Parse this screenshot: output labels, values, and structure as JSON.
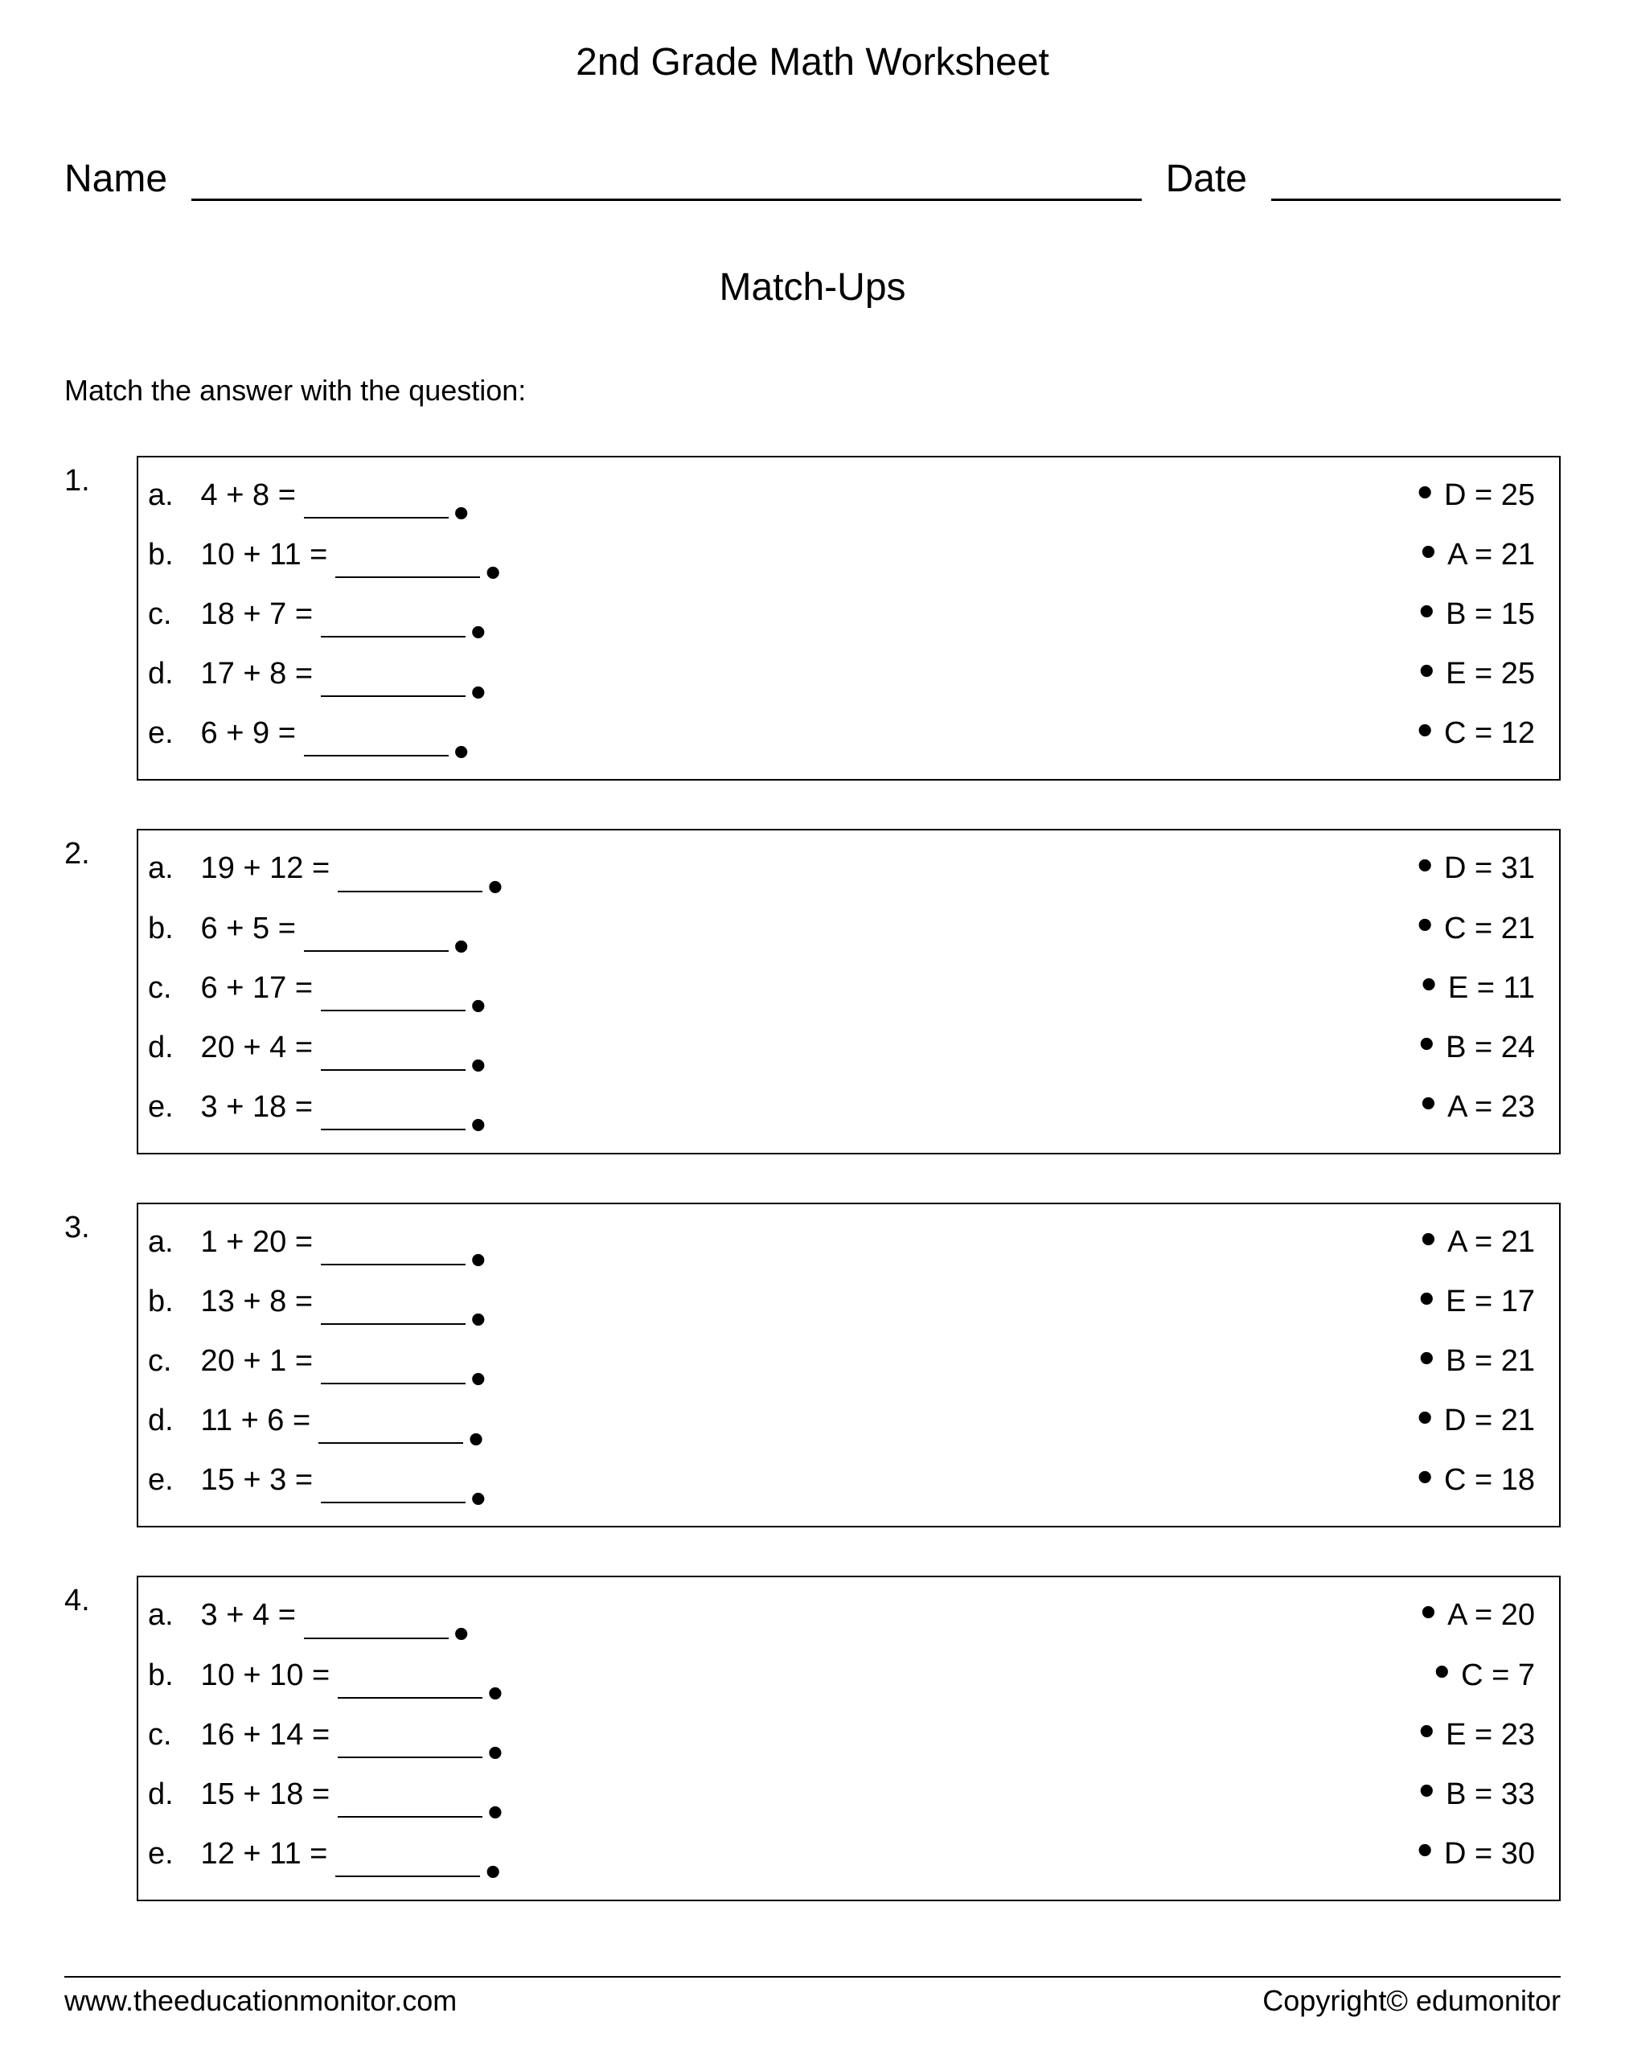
{
  "header_title": "2nd Grade Math Worksheet",
  "name_label": "Name",
  "date_label": "Date",
  "subtitle": "Match-Ups",
  "instructions": "Match the answer with the question:",
  "bullet": "•",
  "problems": [
    {
      "number": "1.",
      "questions": [
        {
          "letter": "a.",
          "expr": "4 + 8  ="
        },
        {
          "letter": "b.",
          "expr": "10 + 11  ="
        },
        {
          "letter": "c.",
          "expr": "18 + 7  ="
        },
        {
          "letter": "d.",
          "expr": "17 + 8  ="
        },
        {
          "letter": "e.",
          "expr": "6 + 9  ="
        }
      ],
      "answers": [
        "D  =  25",
        "A  =  21",
        "B  =  15",
        "E  =  25",
        "C  =  12"
      ]
    },
    {
      "number": "2.",
      "questions": [
        {
          "letter": "a.",
          "expr": "19 + 12  ="
        },
        {
          "letter": "b.",
          "expr": "6 + 5  ="
        },
        {
          "letter": "c.",
          "expr": "6 + 17  ="
        },
        {
          "letter": "d.",
          "expr": "20 + 4  ="
        },
        {
          "letter": "e.",
          "expr": "3 + 18  ="
        }
      ],
      "answers": [
        "D  =  31",
        "C  =  21",
        "E  =  11",
        "B  =  24",
        "A  =  23"
      ]
    },
    {
      "number": "3.",
      "questions": [
        {
          "letter": "a.",
          "expr": "1 + 20  ="
        },
        {
          "letter": "b.",
          "expr": "13 + 8  ="
        },
        {
          "letter": "c.",
          "expr": "20 + 1  ="
        },
        {
          "letter": "d.",
          "expr": "11 + 6  ="
        },
        {
          "letter": "e.",
          "expr": "15 + 3  ="
        }
      ],
      "answers": [
        "A  =  21",
        "E  =  17",
        "B  =  21",
        "D  =  21",
        "C  =  18"
      ]
    },
    {
      "number": "4.",
      "questions": [
        {
          "letter": "a.",
          "expr": "3 + 4  ="
        },
        {
          "letter": "b.",
          "expr": "10 + 10  ="
        },
        {
          "letter": "c.",
          "expr": "16 + 14  ="
        },
        {
          "letter": "d.",
          "expr": "15 + 18  ="
        },
        {
          "letter": "e.",
          "expr": "12 + 11  ="
        }
      ],
      "answers": [
        "A  =  20",
        "C  =  7",
        "E  =  23",
        "B  =  33",
        "D  =  30"
      ]
    }
  ],
  "footer_left": "www.theeducationmonitor.com",
  "footer_right": "Copyright© edumonitor"
}
